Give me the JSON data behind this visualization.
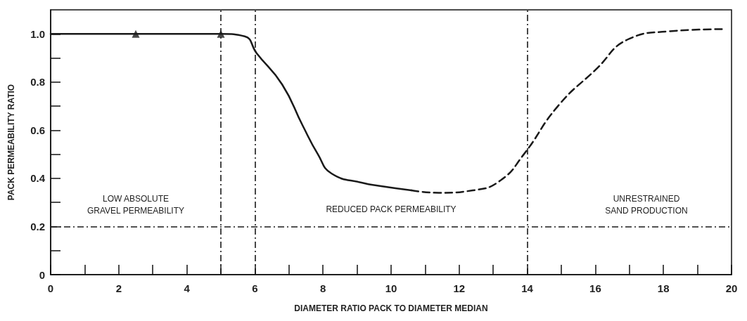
{
  "chart_data": {
    "type": "line",
    "xlabel": "DIAMETER RATIO PACK TO DIAMETER MEDIAN",
    "ylabel": "PACK PERMEABILITY RATIO",
    "xlim": [
      0,
      20
    ],
    "xticks": [
      0,
      {
        "value": 1,
        "label": null
      },
      2,
      {
        "value": 3,
        "label": null
      },
      4,
      {
        "value": 5,
        "label": null
      },
      6,
      {
        "value": 7,
        "label": null
      },
      8,
      {
        "value": 9,
        "label": null
      },
      10,
      {
        "value": 11,
        "label": null
      },
      12,
      {
        "value": 13,
        "label": null
      },
      14,
      {
        "value": 15,
        "label": null
      },
      16,
      {
        "value": 17,
        "label": null
      },
      18,
      {
        "value": 19,
        "label": null
      },
      20
    ],
    "ylim": [
      0,
      1.1
    ],
    "yticks": [
      0,
      {
        "value": 0.1,
        "label": null
      },
      0.2,
      {
        "value": 0.3,
        "label": null
      },
      0.4,
      {
        "value": 0.5,
        "label": null
      },
      0.6,
      {
        "value": 0.7,
        "label": null
      },
      0.8,
      {
        "value": 0.9,
        "label": null
      },
      {
        "value": 1.0,
        "label": "1.0"
      }
    ],
    "series": [
      {
        "color": "#1a1a1a",
        "line_style": "solid",
        "marker": "none",
        "x": [
          0,
          2.5,
          5,
          5.7,
          6.05,
          6.8,
          7.4,
          7.85,
          8.25,
          9.2,
          9.6,
          10.6
        ],
        "values": [
          1.0,
          1.0,
          1.0,
          0.99,
          0.92,
          0.79,
          0.62,
          0.5,
          0.42,
          0.38,
          0.37,
          0.35
        ]
      },
      {
        "color": "#1a1a1a",
        "line_style": "dashed",
        "marker": "none",
        "x": [
          10.6,
          11.4,
          12.4,
          13.2,
          13.9,
          14.9,
          16,
          17,
          18.1,
          19.75
        ],
        "values": [
          0.35,
          0.34,
          0.35,
          0.39,
          0.5,
          0.7,
          0.85,
          0.98,
          1.01,
          1.02
        ]
      },
      {
        "type": "scatter",
        "color": "#1a1a1a",
        "marker": "triangle",
        "x": [
          2.5,
          5
        ],
        "values": [
          1.0,
          1.0
        ]
      }
    ],
    "ref_lines": [
      {
        "axis": "x",
        "value": 5,
        "line_style": "dashed",
        "color": "#1a1a1a"
      },
      {
        "axis": "x",
        "value": 6,
        "line_style": "dashed",
        "color": "#1a1a1a"
      },
      {
        "axis": "x",
        "value": 14,
        "line_style": "dashed",
        "color": "#1a1a1a"
      },
      {
        "axis": "y",
        "value": 0.2,
        "line_style": "dashed",
        "color": "#1a1a1a"
      }
    ],
    "annotations": [
      "LOW ABSOLUTE\nGRAVEL PERMEABILITY",
      "REDUCED PACK PERMEABILITY",
      "UNRESTRAINED\nSAND PRODUCTION"
    ],
    "grid": false
  }
}
